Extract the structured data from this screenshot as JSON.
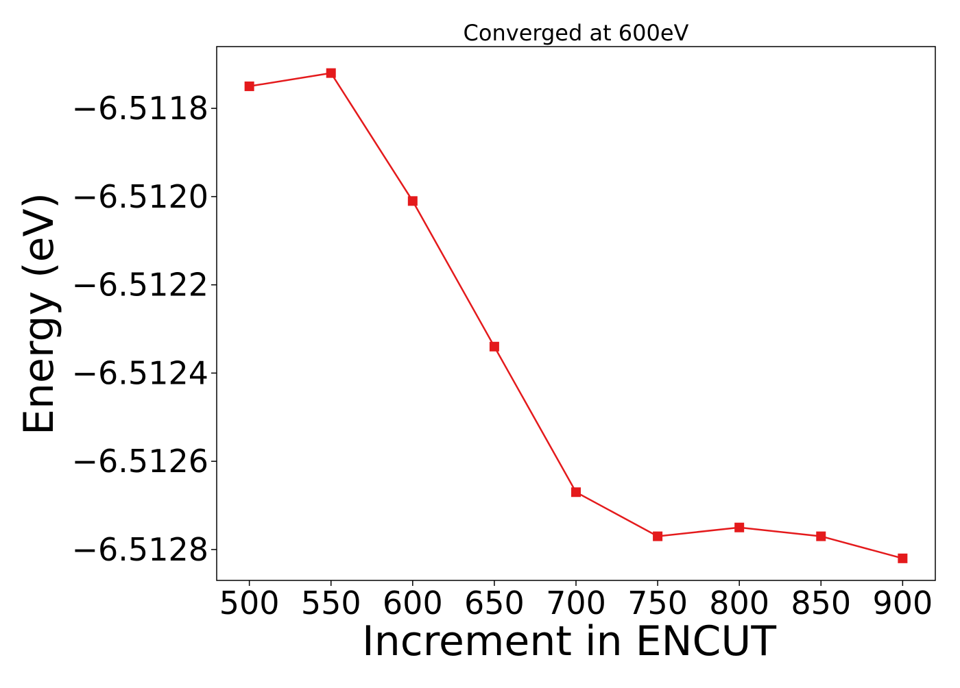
{
  "chart_data": {
    "type": "line",
    "title": "Converged at 600eV",
    "xlabel": "Increment in ENCUT",
    "ylabel": "Energy (eV)",
    "x": [
      500,
      550,
      600,
      650,
      700,
      750,
      800,
      850,
      900
    ],
    "series": [
      {
        "values": [
          -6.51175,
          -6.51172,
          -6.51201,
          -6.51234,
          -6.51267,
          -6.51277,
          -6.51275,
          -6.51277,
          -6.51282
        ],
        "color": "#e41a1c",
        "marker": "square-marker"
      }
    ],
    "xticks": [
      500,
      550,
      600,
      650,
      700,
      750,
      800,
      850,
      900
    ],
    "xtick_labels": [
      "500",
      "550",
      "600",
      "650",
      "700",
      "750",
      "800",
      "850",
      "900"
    ],
    "yticks": [
      -6.5118,
      -6.512,
      -6.5122,
      -6.5124,
      -6.5126,
      -6.5128
    ],
    "ytick_labels": [
      "−6.5118",
      "−6.5120",
      "−6.5122",
      "−6.5124",
      "−6.5126",
      "−6.5128"
    ],
    "xlim": [
      480,
      920
    ],
    "ylim": [
      -6.51287,
      -6.51166
    ],
    "grid": false,
    "legend": "none"
  }
}
